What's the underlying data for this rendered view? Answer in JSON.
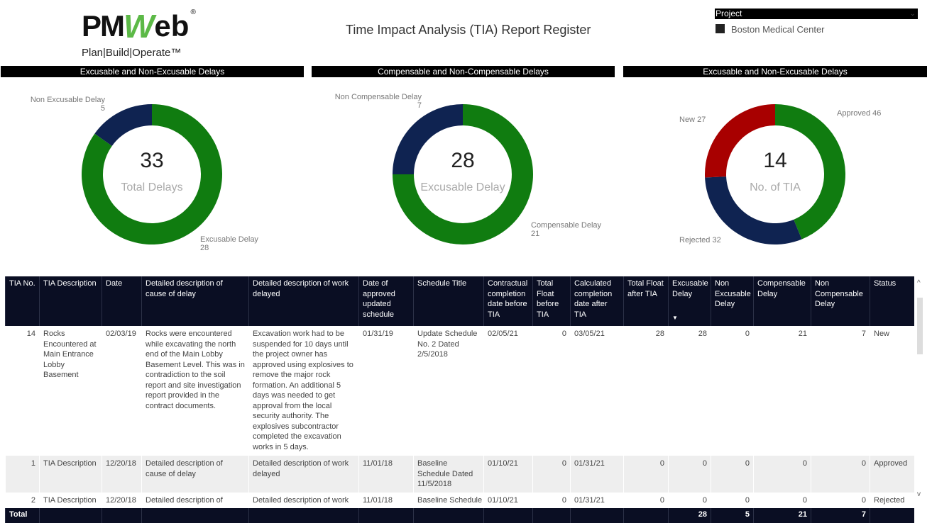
{
  "header": {
    "logo_text": "PMWeb",
    "logo_tagline": "Plan|Build|Operate™",
    "title": "Time Impact Analysis (TIA) Report Register"
  },
  "slicer": {
    "label": "Project",
    "selected": "Boston Medical Center"
  },
  "colors": {
    "green": "#107c10",
    "navy": "#0f2351",
    "red": "#a80000"
  },
  "charts": [
    {
      "title": "Excusable and Non-Excusable Delays",
      "center_value": "33",
      "center_label": "Total Delays",
      "slices": [
        {
          "name": "Excusable Delay",
          "value": 28,
          "color": "#107c10"
        },
        {
          "name": "Non Excusable Delay",
          "value": 5,
          "color": "#0f2351"
        }
      ]
    },
    {
      "title": "Compensable and Non-Compensable Delays",
      "center_value": "28",
      "center_label": "Excusable Delay",
      "slices": [
        {
          "name": "Compensable Delay",
          "value": 21,
          "color": "#107c10"
        },
        {
          "name": "Non Compensable Delay",
          "value": 7,
          "color": "#0f2351"
        }
      ]
    },
    {
      "title": "Excusable and Non-Excusable Delays",
      "center_value": "14",
      "center_label": "No. of TIA",
      "slices": [
        {
          "name": "Approved",
          "value": 46,
          "color": "#107c10"
        },
        {
          "name": "Rejected",
          "value": 32,
          "color": "#0f2351"
        },
        {
          "name": "New",
          "value": 27,
          "color": "#a80000"
        }
      ]
    }
  ],
  "table": {
    "columns": [
      "TIA No.",
      "TIA Description",
      "Date",
      "Detailed description of cause of delay",
      "Detailed description of work delayed",
      "Date of approved updated schedule",
      "Schedule Title",
      "Contractual completion date before TIA",
      "Total Float before TIA",
      "Calculated completion date after TIA",
      "Total Float after TIA",
      "Excusable Delay",
      "Non Excusable Delay",
      "Compensable Delay",
      "Non Compensable Delay",
      "Status"
    ],
    "rows": [
      [
        "14",
        "Rocks Encountered at Main Entrance Lobby Basement",
        "02/03/19",
        "Rocks were encountered while excavating the north end of the Main Lobby Basement Level. This was in contradiction to the soil report and site investigation report provided in the contract documents.",
        "Excavation work had to be suspended for 10 days until the project owner has approved using explosives to remove the major rock formation. An additional 5 days was needed to get approval from the local security authority. The explosives subcontractor completed the excavation works in 5 days.",
        "01/31/19",
        "Update Schedule No. 2 Dated 2/5/2018",
        "02/05/21",
        "0",
        "03/05/21",
        "28",
        "28",
        "0",
        "21",
        "7",
        "New"
      ],
      [
        "1",
        "TIA Description",
        "12/20/18",
        "Detailed description of cause of delay",
        "Detailed description of work delayed",
        "11/01/18",
        "Baseline Schedule Dated 11/5/2018",
        "01/10/21",
        "0",
        "01/31/21",
        "0",
        "0",
        "0",
        "0",
        "0",
        "Approved"
      ],
      [
        "2",
        "TIA Description",
        "12/20/18",
        "Detailed description of",
        "Detailed description of work",
        "11/01/18",
        "Baseline Schedule",
        "01/10/21",
        "0",
        "01/31/21",
        "0",
        "0",
        "0",
        "0",
        "0",
        "Rejected"
      ]
    ],
    "total": [
      "Total",
      "",
      "",
      "",
      "",
      "",
      "",
      "",
      "",
      "",
      "",
      "28",
      "5",
      "21",
      "7",
      ""
    ]
  }
}
